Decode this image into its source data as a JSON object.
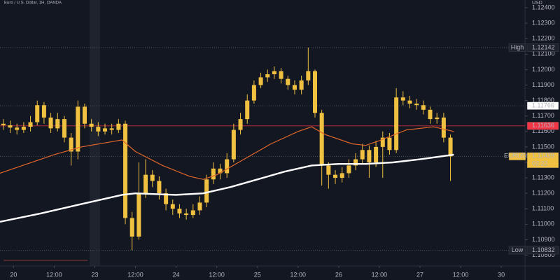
{
  "chart_data": {
    "type": "candlestick",
    "title": "Euro / U.S. Dollar, 1H, OANDA",
    "currency": "USD",
    "candle_color": "#f0c040",
    "x": [
      -3,
      -1,
      1,
      3,
      5,
      7,
      9,
      11,
      13,
      15,
      17,
      19,
      21,
      23,
      25,
      27,
      29,
      31,
      33,
      35,
      37,
      39,
      41,
      43,
      45,
      47,
      49,
      51,
      53,
      55,
      57,
      59,
      61,
      63,
      65,
      67,
      69,
      71,
      73,
      75,
      77,
      79,
      81,
      83,
      85,
      87,
      89,
      91,
      93,
      95,
      97,
      99,
      101,
      103,
      105,
      107,
      109,
      111,
      113,
      115,
      117,
      119,
      121,
      123,
      125,
      127,
      129
    ],
    "open": [
      1.1165,
      1.1164,
      1.11625,
      1.1161,
      1.1163,
      1.1166,
      1.1177,
      1.1169,
      1.1162,
      1.1168,
      1.1156,
      1.1147,
      1.1176,
      1.1165,
      1.1163,
      1.116,
      1.1162,
      1.1161,
      1.1165,
      1.1104,
      1.1092,
      1.112,
      1.1132,
      1.1128,
      1.112,
      1.1113,
      1.111,
      1.1107,
      1.1106,
      1.1109,
      1.1114,
      1.1129,
      1.1136,
      1.1133,
      1.1142,
      1.1161,
      1.1168,
      1.118,
      1.119,
      1.1195,
      1.1197,
      1.1199,
      1.1194,
      1.119,
      1.1187,
      1.1193,
      1.1199,
      1.1172,
      1.1138,
      1.1132,
      1.113,
      1.1133,
      1.1138,
      1.1142,
      1.1148,
      1.114,
      1.115,
      1.1156,
      1.1148,
      1.1182,
      1.118,
      1.1178,
      1.1177,
      1.1174,
      1.1168,
      1.1169,
      1.1156
    ],
    "high": [
      1.1168,
      1.1167,
      1.1165,
      1.1166,
      1.117,
      1.118,
      1.1179,
      1.1172,
      1.1172,
      1.117,
      1.1159,
      1.118,
      1.1178,
      1.1168,
      1.1166,
      1.1165,
      1.1165,
      1.1168,
      1.1167,
      1.1108,
      1.114,
      1.1142,
      1.1135,
      1.1131,
      1.1123,
      1.1116,
      1.1113,
      1.111,
      1.1113,
      1.1118,
      1.1132,
      1.114,
      1.1139,
      1.1146,
      1.1165,
      1.1172,
      1.1184,
      1.1193,
      1.1198,
      1.12,
      1.1202,
      1.1201,
      1.1196,
      1.1193,
      1.1196,
      1.12142,
      1.12,
      1.1174,
      1.114,
      1.1135,
      1.1137,
      1.1142,
      1.1146,
      1.1152,
      1.1151,
      1.1154,
      1.116,
      1.1159,
      1.1188,
      1.1186,
      1.1183,
      1.1181,
      1.118,
      1.1176,
      1.1172,
      1.1172,
      1.1158
    ],
    "low": [
      1.1161,
      1.1159,
      1.1158,
      1.1159,
      1.116,
      1.1164,
      1.1165,
      1.1159,
      1.116,
      1.1153,
      1.1138,
      1.1142,
      1.1162,
      1.116,
      1.1157,
      1.1158,
      1.1158,
      1.1159,
      1.11,
      1.10832,
      1.109,
      1.1117,
      1.1124,
      1.1116,
      1.1109,
      1.1106,
      1.1104,
      1.1103,
      1.1104,
      1.1106,
      1.1111,
      1.1126,
      1.1129,
      1.113,
      1.114,
      1.1158,
      1.1165,
      1.1178,
      1.1188,
      1.1192,
      1.1194,
      1.1191,
      1.1187,
      1.1184,
      1.1184,
      1.119,
      1.1169,
      1.1125,
      1.1123,
      1.1126,
      1.1127,
      1.113,
      1.1135,
      1.1139,
      1.113,
      1.1137,
      1.113,
      1.1145,
      1.1146,
      1.1177,
      1.1175,
      1.1174,
      1.1171,
      1.1165,
      1.1165,
      1.1153,
      1.1128
    ],
    "close": [
      1.1164,
      1.11625,
      1.1161,
      1.1163,
      1.1166,
      1.1177,
      1.1169,
      1.1162,
      1.1168,
      1.1156,
      1.1147,
      1.1176,
      1.1165,
      1.1163,
      1.116,
      1.1162,
      1.1161,
      1.1165,
      1.1104,
      1.1092,
      1.112,
      1.1132,
      1.1128,
      1.112,
      1.1113,
      1.111,
      1.1107,
      1.1106,
      1.1109,
      1.1114,
      1.1129,
      1.1136,
      1.1133,
      1.1142,
      1.1161,
      1.1168,
      1.118,
      1.119,
      1.1195,
      1.1197,
      1.1199,
      1.1194,
      1.119,
      1.1187,
      1.1193,
      1.1199,
      1.1172,
      1.1138,
      1.1132,
      1.113,
      1.1133,
      1.1138,
      1.1142,
      1.1148,
      1.114,
      1.115,
      1.1156,
      1.1148,
      1.1182,
      1.118,
      1.1178,
      1.1177,
      1.1174,
      1.1168,
      1.1169,
      1.1156,
      1.11439
    ],
    "lines": [
      {
        "color": "#e0652a",
        "width": 1.2,
        "x": [
          -4,
          4,
          12,
          20,
          28,
          32,
          36,
          44,
          52,
          56,
          60,
          68,
          76,
          84,
          88,
          92,
          100,
          104,
          108,
          116,
          124,
          130
        ],
        "values": [
          1.1133,
          1.1139,
          1.1145,
          1.115,
          1.1153,
          1.11545,
          1.1147,
          1.1138,
          1.1131,
          1.1129,
          1.1132,
          1.1142,
          1.1152,
          1.116,
          1.1163,
          1.1158,
          1.1152,
          1.1151,
          1.1154,
          1.1161,
          1.1163,
          1.116
        ]
      },
      {
        "color": "#ffffff",
        "width": 2.4,
        "x": [
          -4,
          8,
          20,
          32,
          36,
          48,
          56,
          64,
          72,
          80,
          88,
          96,
          104,
          112,
          120,
          130
        ],
        "values": [
          1.11016,
          1.1107,
          1.1113,
          1.1119,
          1.112,
          1.1119,
          1.112,
          1.1124,
          1.1129,
          1.1134,
          1.1138,
          1.1139,
          1.1139,
          1.114,
          1.1142,
          1.1145
        ]
      }
    ],
    "price_tags": [
      {
        "label": "High",
        "value": 1.12142,
        "color": "#1e222d",
        "text_color": "#d1d4dc",
        "line": "dotted"
      },
      {
        "value": 1.11766,
        "color": "#ffffff",
        "text_color": "#131722",
        "line": "dotted"
      },
      {
        "value": 1.11636,
        "color": "#f23645",
        "text_color": "#ffffff",
        "line": "solid"
      },
      {
        "label": "EURUSD",
        "value": 1.11439,
        "countdown": "02:22",
        "color": "#f0c040",
        "text_color": "#131722",
        "line": "dotted"
      },
      {
        "label": "Low",
        "value": 1.10832,
        "color": "#1e222d",
        "text_color": "#d1d4dc",
        "line": "dotted"
      }
    ],
    "xlim": [
      -4,
      151
    ],
    "xticks": [
      {
        "value": 0,
        "label": "20"
      },
      {
        "value": 12,
        "label": "12:00"
      },
      {
        "value": 24,
        "label": "23"
      },
      {
        "value": 36,
        "label": "12:00"
      },
      {
        "value": 48,
        "label": "24"
      },
      {
        "value": 60,
        "label": "12:00"
      },
      {
        "value": 72,
        "label": "25"
      },
      {
        "value": 84,
        "label": "12:00"
      },
      {
        "value": 96,
        "label": "26"
      },
      {
        "value": 108,
        "label": "12:00"
      },
      {
        "value": 120,
        "label": "27"
      },
      {
        "value": 132,
        "label": "12:00"
      },
      {
        "value": 144,
        "label": "30"
      }
    ],
    "ylim": [
      1.1073,
      1.1245
    ],
    "yticks": [
      {
        "value": 1.108,
        "label": "1.10800"
      },
      {
        "value": 1.109,
        "label": "1.10900"
      },
      {
        "value": 1.11,
        "label": "1.11000"
      },
      {
        "value": 1.111,
        "label": "1.11100"
      },
      {
        "value": 1.112,
        "label": "1.11200"
      },
      {
        "value": 1.113,
        "label": "1.11300"
      },
      {
        "value": 1.114,
        "label": "1.11400"
      },
      {
        "value": 1.115,
        "label": "1.11500"
      },
      {
        "value": 1.116,
        "label": "1.11600"
      },
      {
        "value": 1.117,
        "label": "1.11700"
      },
      {
        "value": 1.118,
        "label": "1.11800"
      },
      {
        "value": 1.119,
        "label": "1.11900"
      },
      {
        "value": 1.12,
        "label": "1.12000"
      },
      {
        "value": 1.121,
        "label": "1.12100"
      },
      {
        "value": 1.122,
        "label": "1.12200"
      },
      {
        "value": 1.123,
        "label": "1.12300"
      },
      {
        "value": 1.124,
        "label": "1.12400"
      }
    ]
  }
}
